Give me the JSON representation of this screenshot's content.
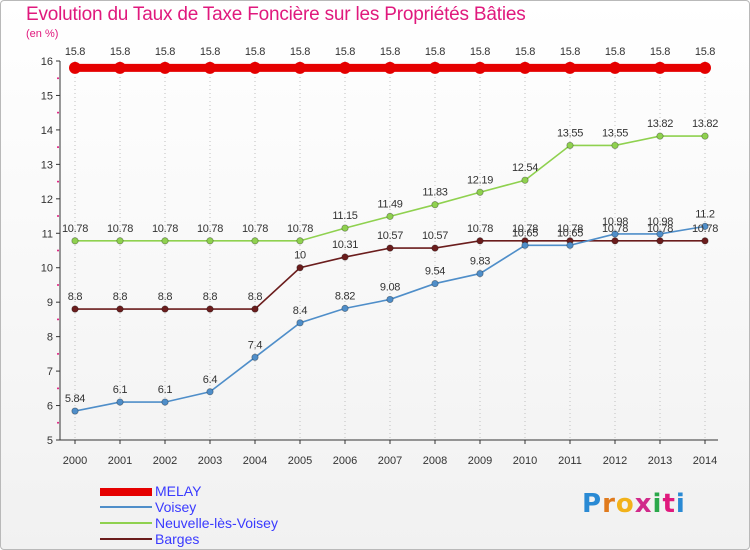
{
  "title": "Evolution du Taux de Taxe Foncière sur les Propriétés Bâties",
  "unit": "(en %)",
  "brand": "Proxiti",
  "colors": {
    "title": "#e0197d",
    "grid": "#bfbfbf",
    "axis": "#333333"
  },
  "chart_data": {
    "type": "line",
    "title": "Evolution du Taux de Taxe Foncière sur les Propriétés Bâties",
    "ylabel": "(en %)",
    "xlabel": "",
    "ylim": [
      5,
      16
    ],
    "yticks": [
      5,
      6,
      7,
      8,
      9,
      10,
      11,
      12,
      13,
      14,
      15,
      16
    ],
    "x": [
      "2000",
      "2001",
      "2002",
      "2003",
      "2004",
      "2005",
      "2006",
      "2007",
      "2008",
      "2009",
      "2010",
      "2011",
      "2012",
      "2013",
      "2014"
    ],
    "grid": "vertical-dotted",
    "legend_position": "bottom-left",
    "series": [
      {
        "name": "MELAY",
        "color": "#e50000",
        "values": [
          15.8,
          15.8,
          15.8,
          15.8,
          15.8,
          15.8,
          15.8,
          15.8,
          15.8,
          15.8,
          15.8,
          15.8,
          15.8,
          15.8,
          15.8
        ],
        "labels": [
          "15.8",
          "15.8",
          "15.8",
          "15.8",
          "15.8",
          "15.8",
          "15.8",
          "15.8",
          "15.8",
          "15.8",
          "15.8",
          "15.8",
          "15.8",
          "15.8",
          "15.8"
        ]
      },
      {
        "name": "Voisey",
        "color": "#4f8ec9",
        "values": [
          5.84,
          6.1,
          6.1,
          6.4,
          7.4,
          8.4,
          8.82,
          9.08,
          9.54,
          9.83,
          10.65,
          10.65,
          10.98,
          10.98,
          11.2
        ],
        "labels": [
          "5.84",
          "6.1",
          "6.1",
          "6.4",
          "7.4",
          "8.4",
          "8.82",
          "9.08",
          "9.54",
          "9.83",
          "10.65",
          "10.65",
          "10.98",
          "10.98",
          "11.2"
        ]
      },
      {
        "name": "Neuvelle-lès-Voisey",
        "color": "#8fd14f",
        "values": [
          10.78,
          10.78,
          10.78,
          10.78,
          10.78,
          10.78,
          11.15,
          11.49,
          11.83,
          12.19,
          12.54,
          13.55,
          13.55,
          13.82,
          13.82
        ],
        "labels": [
          "10.78",
          "10.78",
          "10.78",
          "10.78",
          "10.78",
          "10.78",
          "11.15",
          "11.49",
          "11.83",
          "12.19",
          "12.54",
          "13.55",
          "13.55",
          "13.82",
          "13.82"
        ]
      },
      {
        "name": "Barges",
        "color": "#6b1d1d",
        "values": [
          8.8,
          8.8,
          8.8,
          8.8,
          8.8,
          10,
          10.31,
          10.57,
          10.57,
          10.78,
          10.78,
          10.78,
          10.78,
          10.78,
          10.78
        ],
        "labels": [
          "8.8",
          "8.8",
          "8.8",
          "8.8",
          "8.8",
          "10",
          "10.31",
          "10.57",
          "10.57",
          "10.78",
          "10.78",
          "10.78",
          "10.78",
          "10.78",
          "10.78"
        ]
      }
    ]
  }
}
